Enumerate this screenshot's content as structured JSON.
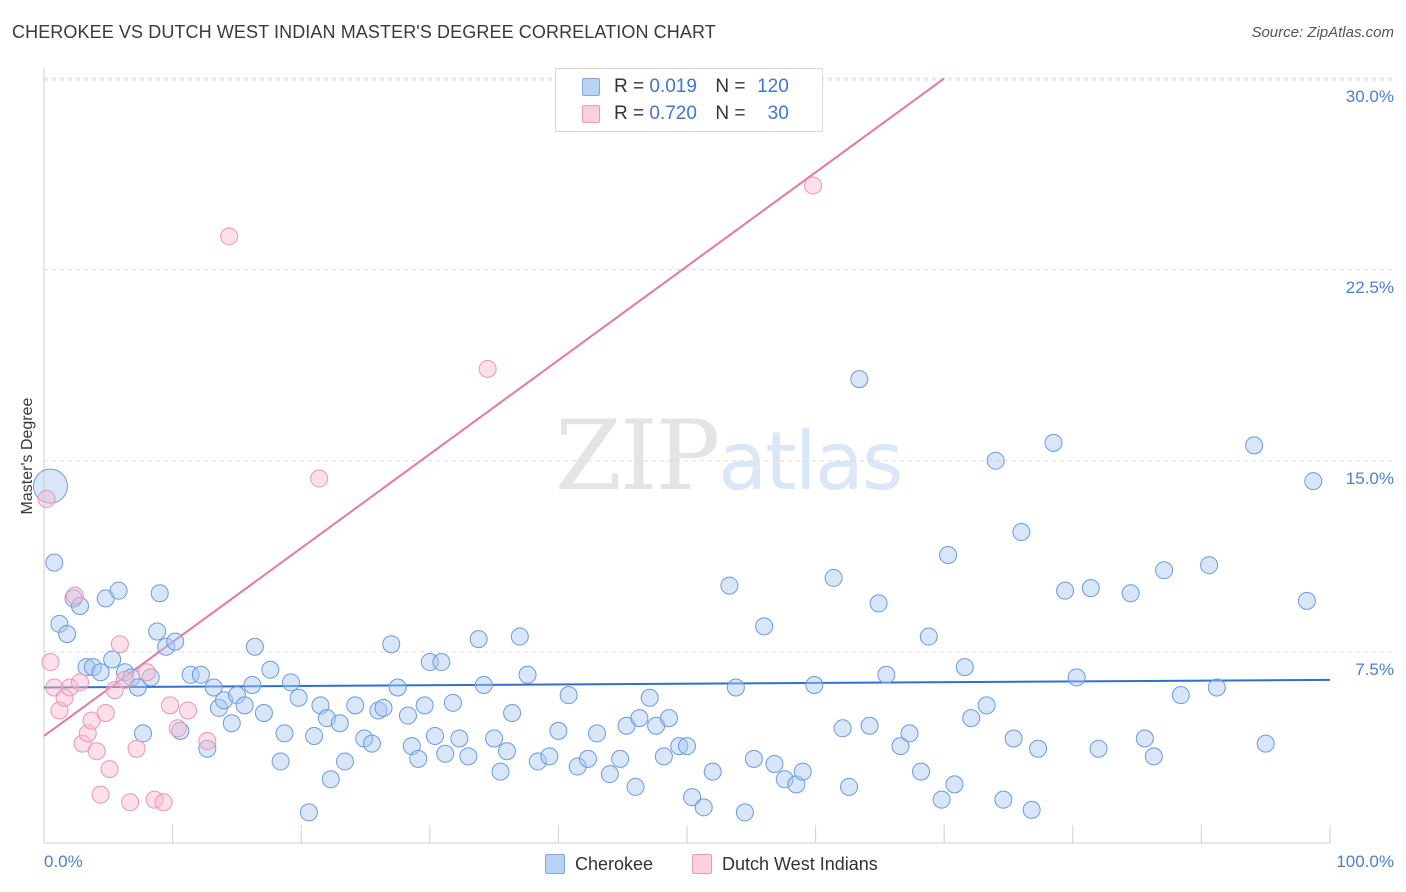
{
  "title": "CHEROKEE VS DUTCH WEST INDIAN MASTER'S DEGREE CORRELATION CHART",
  "source": "Source: ZipAtlas.com",
  "watermark": {
    "zip": "ZIP",
    "atlas": "atlas"
  },
  "legend": {
    "r_label": "R =",
    "n_label": "N =",
    "series": [
      {
        "name": "Cherokee",
        "r": "0.019",
        "n": "120"
      },
      {
        "name": "Dutch West Indians",
        "r": "0.720",
        "n": "30"
      }
    ]
  },
  "chart_data": {
    "type": "scatter",
    "title": "CHEROKEE VS DUTCH WEST INDIAN MASTER'S DEGREE CORRELATION CHART",
    "xlabel": "",
    "ylabel": "Master's Degree",
    "xlim": [
      0,
      100
    ],
    "ylim": [
      0,
      30.5
    ],
    "x_tick_labels": [
      "0.0%",
      "100.0%"
    ],
    "y_ticks": [
      7.5,
      15.0,
      22.5,
      30.0
    ],
    "y_tick_labels": [
      "7.5%",
      "15.0%",
      "22.5%",
      "30.0%"
    ],
    "colors": {
      "Cherokee": "#6a9be0",
      "Dutch West Indians": "#ee94b2",
      "Cherokee_line": "#2f6fcf",
      "Dutch West Indians_line": "#e8779e",
      "axis_tick": "#4a7fd0"
    },
    "series": [
      {
        "name": "Cherokee",
        "trend": {
          "x": [
            0,
            100
          ],
          "y": [
            6.1,
            6.4
          ]
        },
        "points": [
          {
            "x": 0.5,
            "y": 14.0,
            "big": true
          },
          {
            "x": 0.8,
            "y": 11.0
          },
          {
            "x": 1.2,
            "y": 8.6
          },
          {
            "x": 1.8,
            "y": 8.2
          },
          {
            "x": 2.3,
            "y": 9.6
          },
          {
            "x": 2.8,
            "y": 9.3
          },
          {
            "x": 3.3,
            "y": 6.9
          },
          {
            "x": 3.8,
            "y": 6.9
          },
          {
            "x": 4.4,
            "y": 6.7
          },
          {
            "x": 4.8,
            "y": 9.6
          },
          {
            "x": 5.3,
            "y": 7.2
          },
          {
            "x": 5.8,
            "y": 9.9
          },
          {
            "x": 6.3,
            "y": 6.7
          },
          {
            "x": 6.8,
            "y": 6.5
          },
          {
            "x": 7.3,
            "y": 6.1
          },
          {
            "x": 7.7,
            "y": 4.3
          },
          {
            "x": 8.3,
            "y": 6.5
          },
          {
            "x": 8.8,
            "y": 8.3
          },
          {
            "x": 9.0,
            "y": 9.8
          },
          {
            "x": 9.5,
            "y": 7.7
          },
          {
            "x": 10.2,
            "y": 7.9
          },
          {
            "x": 10.6,
            "y": 4.4
          },
          {
            "x": 11.4,
            "y": 6.6
          },
          {
            "x": 12.2,
            "y": 6.6
          },
          {
            "x": 12.7,
            "y": 3.7
          },
          {
            "x": 13.2,
            "y": 6.1
          },
          {
            "x": 13.6,
            "y": 5.3
          },
          {
            "x": 14.0,
            "y": 5.6
          },
          {
            "x": 14.6,
            "y": 4.7
          },
          {
            "x": 15.0,
            "y": 5.8
          },
          {
            "x": 15.6,
            "y": 5.4
          },
          {
            "x": 16.2,
            "y": 6.2
          },
          {
            "x": 16.4,
            "y": 7.7
          },
          {
            "x": 17.1,
            "y": 5.1
          },
          {
            "x": 17.6,
            "y": 6.8
          },
          {
            "x": 18.4,
            "y": 3.2
          },
          {
            "x": 18.7,
            "y": 4.3
          },
          {
            "x": 19.2,
            "y": 6.3
          },
          {
            "x": 19.8,
            "y": 5.7
          },
          {
            "x": 20.6,
            "y": 1.2
          },
          {
            "x": 21.0,
            "y": 4.2
          },
          {
            "x": 21.5,
            "y": 5.4
          },
          {
            "x": 22.0,
            "y": 4.9
          },
          {
            "x": 22.3,
            "y": 2.5
          },
          {
            "x": 23.0,
            "y": 4.7
          },
          {
            "x": 23.4,
            "y": 3.2
          },
          {
            "x": 24.2,
            "y": 5.4
          },
          {
            "x": 24.9,
            "y": 4.1
          },
          {
            "x": 25.5,
            "y": 3.9
          },
          {
            "x": 26.0,
            "y": 5.2
          },
          {
            "x": 26.4,
            "y": 5.3
          },
          {
            "x": 27.0,
            "y": 7.8
          },
          {
            "x": 27.5,
            "y": 6.1
          },
          {
            "x": 28.3,
            "y": 5.0
          },
          {
            "x": 28.6,
            "y": 3.8
          },
          {
            "x": 29.1,
            "y": 3.3
          },
          {
            "x": 29.6,
            "y": 5.4
          },
          {
            "x": 30.0,
            "y": 7.1
          },
          {
            "x": 30.4,
            "y": 4.2
          },
          {
            "x": 30.9,
            "y": 7.1
          },
          {
            "x": 31.2,
            "y": 3.5
          },
          {
            "x": 31.8,
            "y": 5.5
          },
          {
            "x": 32.3,
            "y": 4.1
          },
          {
            "x": 33.0,
            "y": 3.4
          },
          {
            "x": 33.8,
            "y": 8.0
          },
          {
            "x": 34.2,
            "y": 6.2
          },
          {
            "x": 35.0,
            "y": 4.1
          },
          {
            "x": 35.5,
            "y": 2.8
          },
          {
            "x": 36.0,
            "y": 3.6
          },
          {
            "x": 36.4,
            "y": 5.1
          },
          {
            "x": 37.0,
            "y": 8.1
          },
          {
            "x": 37.6,
            "y": 6.6
          },
          {
            "x": 38.4,
            "y": 3.2
          },
          {
            "x": 39.3,
            "y": 3.4
          },
          {
            "x": 40.0,
            "y": 4.4
          },
          {
            "x": 40.8,
            "y": 5.8
          },
          {
            "x": 41.5,
            "y": 3.0
          },
          {
            "x": 42.3,
            "y": 3.3
          },
          {
            "x": 43.0,
            "y": 4.3
          },
          {
            "x": 44.0,
            "y": 2.7
          },
          {
            "x": 44.8,
            "y": 3.3
          },
          {
            "x": 45.3,
            "y": 4.6
          },
          {
            "x": 46.0,
            "y": 2.2
          },
          {
            "x": 46.3,
            "y": 4.9
          },
          {
            "x": 47.1,
            "y": 5.7
          },
          {
            "x": 47.6,
            "y": 4.6
          },
          {
            "x": 48.2,
            "y": 3.4
          },
          {
            "x": 48.6,
            "y": 4.9
          },
          {
            "x": 49.4,
            "y": 3.8
          },
          {
            "x": 50.0,
            "y": 3.8
          },
          {
            "x": 50.4,
            "y": 1.8
          },
          {
            "x": 51.3,
            "y": 1.4
          },
          {
            "x": 52.0,
            "y": 2.8
          },
          {
            "x": 53.3,
            "y": 10.1
          },
          {
            "x": 53.8,
            "y": 6.1
          },
          {
            "x": 54.5,
            "y": 1.2
          },
          {
            "x": 55.2,
            "y": 3.3
          },
          {
            "x": 56.0,
            "y": 8.5
          },
          {
            "x": 56.8,
            "y": 3.1
          },
          {
            "x": 57.6,
            "y": 2.5
          },
          {
            "x": 58.5,
            "y": 2.3
          },
          {
            "x": 59.0,
            "y": 2.8
          },
          {
            "x": 59.9,
            "y": 6.2
          },
          {
            "x": 61.4,
            "y": 10.4
          },
          {
            "x": 62.1,
            "y": 4.5
          },
          {
            "x": 62.6,
            "y": 2.2
          },
          {
            "x": 63.4,
            "y": 18.2
          },
          {
            "x": 64.2,
            "y": 4.6
          },
          {
            "x": 64.9,
            "y": 9.4
          },
          {
            "x": 65.5,
            "y": 6.6
          },
          {
            "x": 66.6,
            "y": 3.8
          },
          {
            "x": 67.3,
            "y": 4.3
          },
          {
            "x": 68.2,
            "y": 2.8
          },
          {
            "x": 68.8,
            "y": 8.1
          },
          {
            "x": 69.8,
            "y": 1.7
          },
          {
            "x": 70.3,
            "y": 11.3
          },
          {
            "x": 70.8,
            "y": 2.3
          },
          {
            "x": 71.6,
            "y": 6.9
          },
          {
            "x": 72.1,
            "y": 4.9
          },
          {
            "x": 73.3,
            "y": 5.4
          },
          {
            "x": 74.0,
            "y": 15.0
          },
          {
            "x": 74.6,
            "y": 1.7
          },
          {
            "x": 75.4,
            "y": 4.1
          },
          {
            "x": 76.0,
            "y": 12.2
          },
          {
            "x": 76.8,
            "y": 1.3
          },
          {
            "x": 77.3,
            "y": 3.7
          },
          {
            "x": 78.5,
            "y": 15.7
          },
          {
            "x": 79.4,
            "y": 9.9
          },
          {
            "x": 80.3,
            "y": 6.5
          },
          {
            "x": 81.4,
            "y": 10.0
          },
          {
            "x": 82.0,
            "y": 3.7
          },
          {
            "x": 84.5,
            "y": 9.8
          },
          {
            "x": 85.6,
            "y": 4.1
          },
          {
            "x": 86.3,
            "y": 3.4
          },
          {
            "x": 87.1,
            "y": 10.7
          },
          {
            "x": 88.4,
            "y": 5.8
          },
          {
            "x": 90.6,
            "y": 10.9
          },
          {
            "x": 91.2,
            "y": 6.1
          },
          {
            "x": 94.1,
            "y": 15.6
          },
          {
            "x": 95.0,
            "y": 3.9
          },
          {
            "x": 98.2,
            "y": 9.5
          },
          {
            "x": 98.7,
            "y": 14.2
          }
        ]
      },
      {
        "name": "Dutch West Indians",
        "trend": {
          "x": [
            0,
            70
          ],
          "y": [
            4.2,
            30.0
          ]
        },
        "points": [
          {
            "x": 0.2,
            "y": 13.5
          },
          {
            "x": 0.5,
            "y": 7.1
          },
          {
            "x": 0.8,
            "y": 6.1
          },
          {
            "x": 1.2,
            "y": 5.2
          },
          {
            "x": 1.6,
            "y": 5.7
          },
          {
            "x": 2.0,
            "y": 6.1
          },
          {
            "x": 2.4,
            "y": 9.7
          },
          {
            "x": 2.8,
            "y": 6.3
          },
          {
            "x": 3.0,
            "y": 3.9
          },
          {
            "x": 3.4,
            "y": 4.3
          },
          {
            "x": 3.7,
            "y": 4.8
          },
          {
            "x": 4.1,
            "y": 3.6
          },
          {
            "x": 4.4,
            "y": 1.9
          },
          {
            "x": 4.8,
            "y": 5.1
          },
          {
            "x": 5.1,
            "y": 2.9
          },
          {
            "x": 5.5,
            "y": 6.0
          },
          {
            "x": 5.9,
            "y": 7.8
          },
          {
            "x": 6.3,
            "y": 6.4
          },
          {
            "x": 6.7,
            "y": 1.6
          },
          {
            "x": 7.2,
            "y": 3.7
          },
          {
            "x": 8.0,
            "y": 6.7
          },
          {
            "x": 8.6,
            "y": 1.7
          },
          {
            "x": 9.3,
            "y": 1.6
          },
          {
            "x": 9.8,
            "y": 5.4
          },
          {
            "x": 10.4,
            "y": 4.5
          },
          {
            "x": 11.2,
            "y": 5.2
          },
          {
            "x": 12.7,
            "y": 4.0
          },
          {
            "x": 14.4,
            "y": 23.8
          },
          {
            "x": 21.4,
            "y": 14.3
          },
          {
            "x": 34.5,
            "y": 18.6
          },
          {
            "x": 59.8,
            "y": 25.8
          }
        ]
      }
    ]
  }
}
